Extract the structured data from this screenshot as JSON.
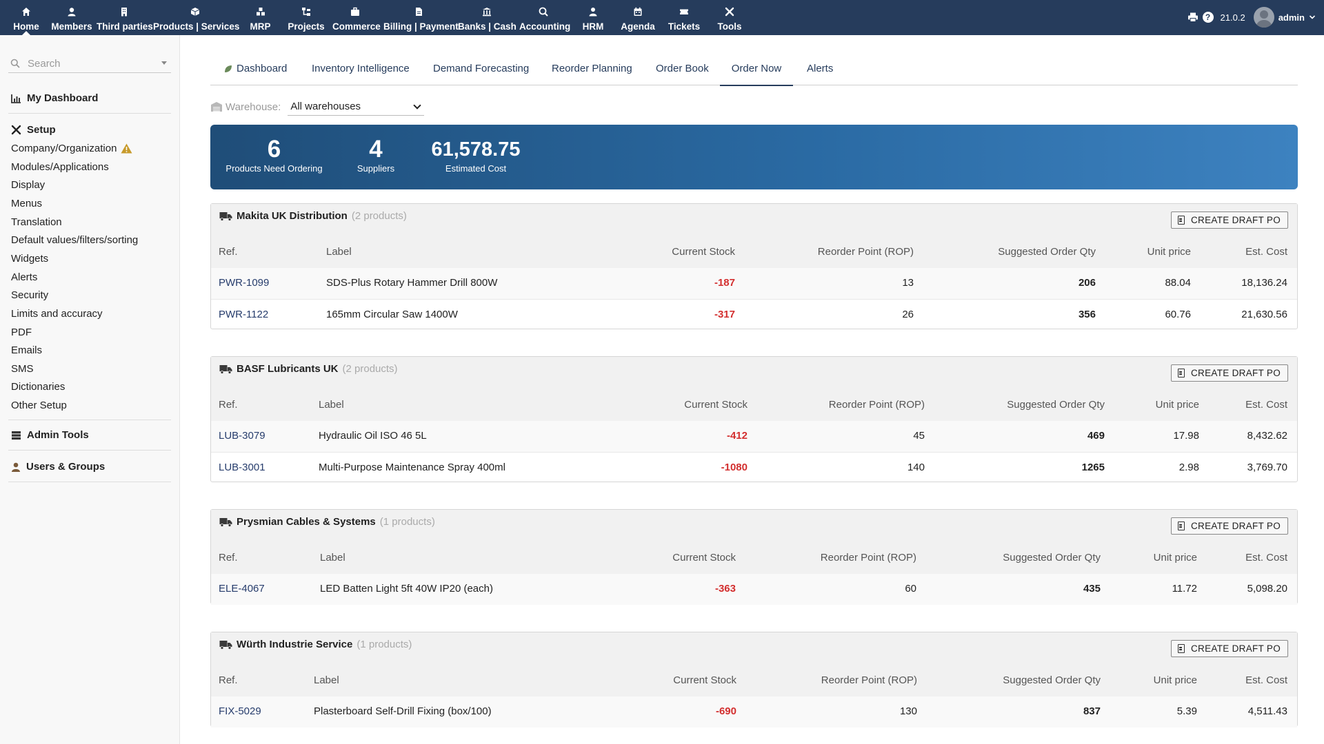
{
  "topnav": [
    {
      "label": "Home",
      "icon": "home-icon",
      "active": true
    },
    {
      "label": "Members",
      "icon": "user-icon"
    },
    {
      "label": "Third parties",
      "icon": "building-icon"
    },
    {
      "label": "Products | Services",
      "icon": "cube-icon"
    },
    {
      "label": "MRP",
      "icon": "cubes-icon"
    },
    {
      "label": "Projects",
      "icon": "sitemap-icon"
    },
    {
      "label": "Commerce",
      "icon": "suitcase-icon"
    },
    {
      "label": "Billing | Payment",
      "icon": "invoice-icon"
    },
    {
      "label": "Banks | Cash",
      "icon": "bank-icon"
    },
    {
      "label": "Accounting",
      "icon": "search-dollar-icon"
    },
    {
      "label": "HRM",
      "icon": "user-tie-icon"
    },
    {
      "label": "Agenda",
      "icon": "calendar-icon"
    },
    {
      "label": "Tickets",
      "icon": "ticket-icon"
    },
    {
      "label": "Tools",
      "icon": "tools-icon"
    }
  ],
  "topright": {
    "version": "21.0.2",
    "user": "admin"
  },
  "sidebar": {
    "search_placeholder": "Search",
    "dashboard": "My Dashboard",
    "setup": "Setup",
    "setup_items": [
      "Company/Organization",
      "Modules/Applications",
      "Display",
      "Menus",
      "Translation",
      "Default values/filters/sorting",
      "Widgets",
      "Alerts",
      "Security",
      "Limits and accuracy",
      "PDF",
      "Emails",
      "SMS",
      "Dictionaries",
      "Other Setup"
    ],
    "admin_tools": "Admin Tools",
    "users_groups": "Users & Groups"
  },
  "tabs": [
    "Dashboard",
    "Inventory Intelligence",
    "Demand Forecasting",
    "Reorder Planning",
    "Order Book",
    "Order Now",
    "Alerts"
  ],
  "active_tab": "Order Now",
  "warehouse": {
    "label": "Warehouse:",
    "value": "All warehouses"
  },
  "summary": {
    "products_count": "6",
    "products_label": "Products Need Ordering",
    "suppliers_count": "4",
    "suppliers_label": "Suppliers",
    "cost": "61,578.75",
    "cost_label": "Estimated Cost"
  },
  "columns": [
    "Ref.",
    "Label",
    "Current Stock",
    "Reorder Point (ROP)",
    "Suggested Order Qty",
    "Unit price",
    "Est. Cost"
  ],
  "draft_label": "CREATE DRAFT PO",
  "suppliers": [
    {
      "name": "Makita UK Distribution",
      "count": "(2 products)",
      "rows": [
        {
          "ref": "PWR-1099",
          "label": "SDS-Plus Rotary Hammer Drill 800W",
          "stock": "-187",
          "rop": "13",
          "qty": "206",
          "price": "88.04",
          "cost": "18,136.24"
        },
        {
          "ref": "PWR-1122",
          "label": "165mm Circular Saw 1400W",
          "stock": "-317",
          "rop": "26",
          "qty": "356",
          "price": "60.76",
          "cost": "21,630.56"
        }
      ]
    },
    {
      "name": "BASF Lubricants UK",
      "count": "(2 products)",
      "rows": [
        {
          "ref": "LUB-3079",
          "label": "Hydraulic Oil ISO 46 5L",
          "stock": "-412",
          "rop": "45",
          "qty": "469",
          "price": "17.98",
          "cost": "8,432.62"
        },
        {
          "ref": "LUB-3001",
          "label": "Multi-Purpose Maintenance Spray 400ml",
          "stock": "-1080",
          "rop": "140",
          "qty": "1265",
          "price": "2.98",
          "cost": "3,769.70"
        }
      ]
    },
    {
      "name": "Prysmian Cables & Systems",
      "count": "(1 products)",
      "rows": [
        {
          "ref": "ELE-4067",
          "label": "LED Batten Light 5ft 40W IP20 (each)",
          "stock": "-363",
          "rop": "60",
          "qty": "435",
          "price": "11.72",
          "cost": "5,098.20"
        }
      ]
    },
    {
      "name": "Würth Industrie Service",
      "count": "(1 products)",
      "rows": [
        {
          "ref": "FIX-5029",
          "label": "Plasterboard Self-Drill Fixing (box/100)",
          "stock": "-690",
          "rop": "130",
          "qty": "837",
          "price": "5.39",
          "cost": "4,511.43"
        }
      ]
    }
  ]
}
